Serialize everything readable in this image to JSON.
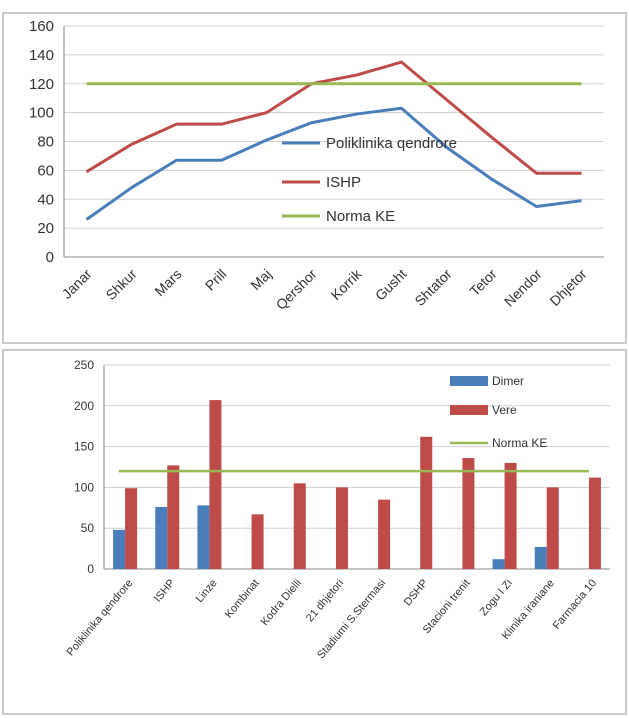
{
  "caption": "",
  "chart_data": [
    {
      "type": "line",
      "categories": [
        "Janar",
        "Shkur",
        "Mars",
        "Prill",
        "Maj",
        "Qershor",
        "Korrik",
        "Gusht",
        "Shtator",
        "Tetor",
        "Nendor",
        "Dhjetor"
      ],
      "series": [
        {
          "name": "Poliklinika qendrore",
          "color": "#4a7ebb",
          "values": [
            26,
            48,
            67,
            67,
            81,
            93,
            99,
            103,
            76,
            54,
            35,
            39
          ]
        },
        {
          "name": "ISHP",
          "color": "#be4b48",
          "values": [
            59,
            78,
            92,
            92,
            100,
            120,
            126,
            135,
            109,
            83,
            58,
            58
          ]
        },
        {
          "name": "Norma KE",
          "color": "#98b954",
          "values": [
            120,
            120,
            120,
            120,
            120,
            120,
            120,
            120,
            120,
            120,
            120,
            120
          ]
        }
      ],
      "yticks": [
        "0",
        "20",
        "40",
        "60",
        "80",
        "100",
        "120",
        "140",
        "160"
      ],
      "ylim": [
        0,
        160
      ],
      "grid": true,
      "legend": "center-right",
      "title": "",
      "xlabel": "",
      "ylabel": ""
    },
    {
      "type": "bar",
      "categories": [
        "Poliklinika qendrore",
        "ISHP",
        "Linze",
        "Kombinat",
        "Kodra  Dielli",
        "21 dhjetori",
        "Stadiumi S.Stermasi",
        "DSHP",
        "Stacioni trenit",
        "Zogu I Zi",
        "Klinika iraniane",
        "Farmacia 10"
      ],
      "series": [
        {
          "name": "Dimer",
          "color": "#4a7ebb",
          "values": [
            48,
            76,
            78,
            0,
            0,
            0,
            0,
            0,
            0,
            12,
            27,
            0
          ]
        },
        {
          "name": "Vere",
          "color": "#be4b48",
          "values": [
            99,
            127,
            207,
            67,
            105,
            100,
            85,
            162,
            136,
            130,
            100,
            112
          ]
        }
      ],
      "line": {
        "name": "Norma KE",
        "color": "#98b954",
        "value": 120
      },
      "yticks": [
        "0",
        "50",
        "100",
        "150",
        "200",
        "250"
      ],
      "ylim": [
        0,
        250
      ],
      "grid": true,
      "legend": "top-right",
      "title": "",
      "xlabel": "",
      "ylabel": ""
    }
  ]
}
